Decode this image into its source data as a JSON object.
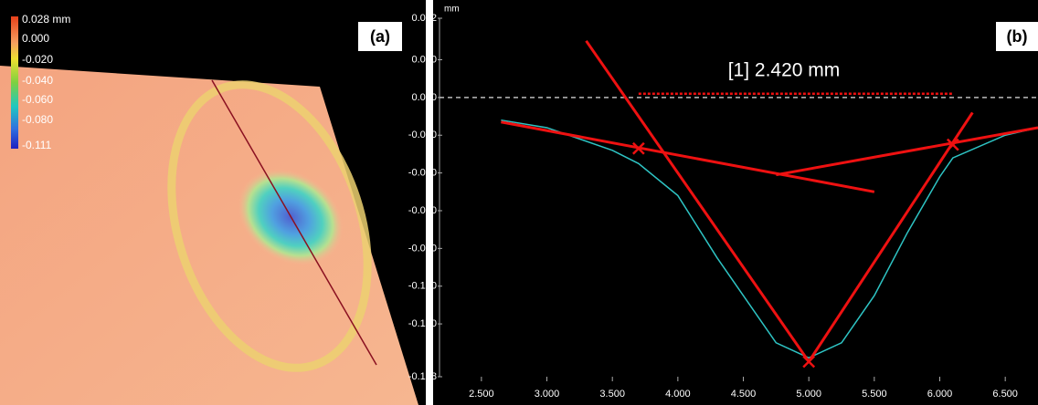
{
  "panel_a": {
    "label": "(a)",
    "colorbar": {
      "labels": [
        "0.028 mm",
        "0.000",
        "-0.020",
        "-0.040",
        "-0.060",
        "-0.080",
        "-0.111"
      ]
    }
  },
  "chart_data": {
    "type": "line",
    "label": "(b)",
    "y_label": "mm",
    "annotation": "[1] 2.420 mm",
    "xlim": [
      2.18,
      6.75
    ],
    "ylim": [
      -0.148,
      0.042
    ],
    "zero_line": true,
    "xticks": [
      {
        "value": 2.5,
        "label": "2.500"
      },
      {
        "value": 3.0,
        "label": "3.000"
      },
      {
        "value": 3.5,
        "label": "3.500"
      },
      {
        "value": 4.0,
        "label": "4.000"
      },
      {
        "value": 4.5,
        "label": "4.500"
      },
      {
        "value": 5.0,
        "label": "5.000"
      },
      {
        "value": 5.5,
        "label": "5.500"
      },
      {
        "value": 6.0,
        "label": "6.000"
      },
      {
        "value": 6.5,
        "label": "6.500"
      }
    ],
    "yticks": [
      {
        "value": 0.042,
        "label": "0.042"
      },
      {
        "value": 0.02,
        "label": "0.020"
      },
      {
        "value": 0,
        "label": "0.000"
      },
      {
        "value": -0.02,
        "label": "-0.020"
      },
      {
        "value": -0.04,
        "label": "-0.040"
      },
      {
        "value": -0.06,
        "label": "-0.060"
      },
      {
        "value": -0.08,
        "label": "-0.080"
      },
      {
        "value": -0.1,
        "label": "-0.100"
      },
      {
        "value": -0.12,
        "label": "-0.120"
      },
      {
        "value": -0.148,
        "label": "-0.148"
      }
    ],
    "series": [
      {
        "color": "#2ec4c4",
        "style": "line",
        "width": 1.5,
        "x": [
          2.65,
          3.0,
          3.5,
          3.7,
          4.0,
          4.3,
          4.5,
          4.75,
          5.0,
          5.25,
          5.5,
          5.75,
          6.0,
          6.1,
          6.5,
          6.75
        ],
        "values": [
          -0.012,
          -0.016,
          -0.028,
          -0.035,
          -0.052,
          -0.085,
          -0.105,
          -0.13,
          -0.138,
          -0.13,
          -0.105,
          -0.072,
          -0.042,
          -0.032,
          -0.02,
          -0.016
        ]
      },
      {
        "color": "#ee1111",
        "style": "line",
        "width": 3,
        "x": [
          3.3,
          5.0
        ],
        "values": [
          0.03,
          -0.14
        ]
      },
      {
        "color": "#ee1111",
        "style": "line",
        "width": 3,
        "x": [
          5.0,
          6.25
        ],
        "values": [
          -0.14,
          -0.008
        ]
      },
      {
        "color": "#ee1111",
        "style": "line",
        "width": 3,
        "x": [
          2.65,
          5.5
        ],
        "values": [
          -0.013,
          -0.05
        ]
      },
      {
        "color": "#ee1111",
        "style": "line",
        "width": 3,
        "x": [
          4.75,
          6.75
        ],
        "values": [
          -0.041,
          -0.016
        ]
      },
      {
        "color": "#ee1111",
        "style": "dotted",
        "width": 2.5,
        "x": [
          3.7,
          6.1
        ],
        "values": [
          0.002,
          0.002
        ]
      },
      {
        "color": "#ee1111",
        "style": "markers",
        "width": 2.5,
        "x": [
          3.7,
          6.1,
          5.0
        ],
        "values": [
          -0.027,
          -0.025,
          -0.14
        ]
      }
    ]
  }
}
